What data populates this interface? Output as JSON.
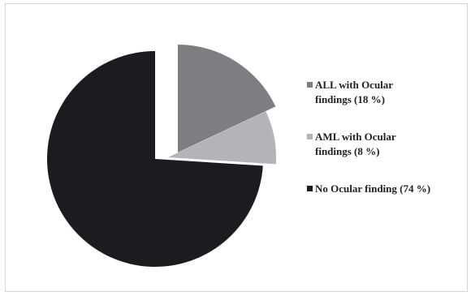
{
  "chart_data": {
    "type": "pie",
    "slices": [
      {
        "label": "ALL with Ocular findings (18 %)",
        "value": 18,
        "color": "#7e7e82",
        "exploded": true
      },
      {
        "label": "AML with Ocular findings (8 %)",
        "value": 8,
        "color": "#b4b4b8",
        "exploded": true
      },
      {
        "label": "No Ocular finding (74 %)",
        "value": 74,
        "color": "#1b1b20",
        "exploded": false
      }
    ],
    "legend": {
      "position": "right",
      "items": [
        {
          "lines": [
            "ALL with Ocular",
            "findings (18 %)"
          ],
          "color": "#7e7e82"
        },
        {
          "lines": [
            "AML with Ocular",
            "findings (8 %)"
          ],
          "color": "#b4b4b8"
        },
        {
          "lines": [
            "No Ocular finding (74 %)"
          ],
          "color": "#1b1b20"
        }
      ]
    }
  }
}
